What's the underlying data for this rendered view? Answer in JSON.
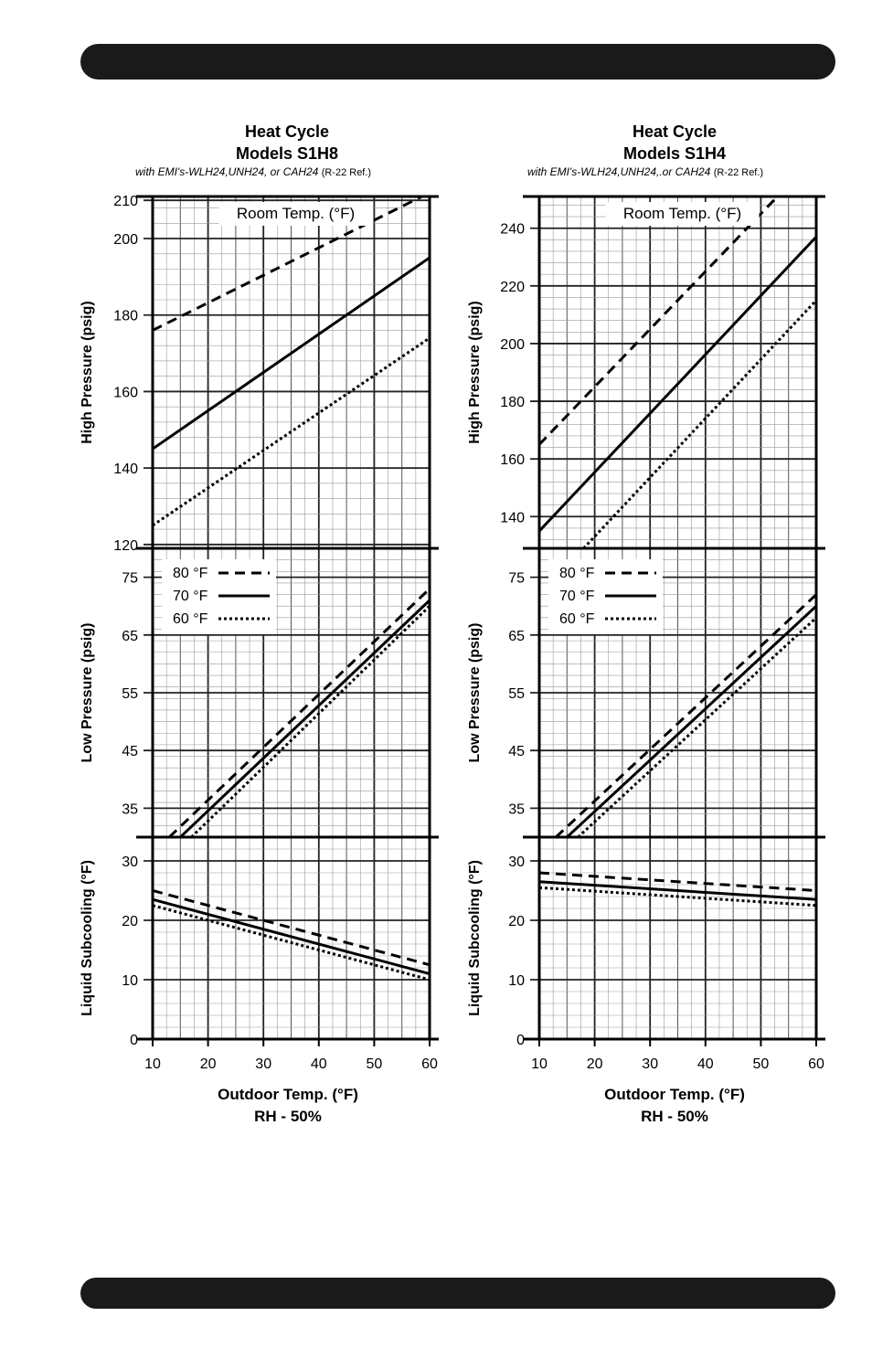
{
  "chart_data": [
    {
      "type": "line",
      "title": "Heat Cycle",
      "subtitle": "Models S1H8",
      "note": "with EMI's-WLH24,UNH24, or CAH24",
      "ref": "(R-22 Ref.)",
      "xlabel": "Outdoor Temp. (°F)",
      "xlabel2": "RH - 50%",
      "x_ticks": [
        10,
        20,
        30,
        40,
        50,
        60
      ],
      "xlim": [
        10,
        60
      ],
      "grid": true,
      "legend_title": "Room Temp. (°F)",
      "legend": [
        "80 °F",
        "70 °F",
        "60 °F"
      ],
      "panels": [
        {
          "ylabel": "High Pressure (psig)",
          "ylim": [
            119,
            211
          ],
          "y_ticks": [
            120,
            140,
            160,
            180,
            200,
            210
          ],
          "series": [
            {
              "name": "80 °F",
              "style": "dashed",
              "points": [
                [
                  10,
                  176
                ],
                [
                  60,
                  212
                ]
              ]
            },
            {
              "name": "70 °F",
              "style": "solid",
              "points": [
                [
                  10,
                  145
                ],
                [
                  60,
                  195
                ]
              ]
            },
            {
              "name": "60 °F",
              "style": "dotted",
              "points": [
                [
                  10,
                  125
                ],
                [
                  60,
                  174
                ]
              ]
            }
          ]
        },
        {
          "ylabel": "Low Pressure (psig)",
          "ylim": [
            30,
            80
          ],
          "y_ticks": [
            35,
            45,
            55,
            65,
            75
          ],
          "series": [
            {
              "name": "80 °F",
              "style": "dashed",
              "points": [
                [
                  13,
                  30
                ],
                [
                  60,
                  73
                ]
              ]
            },
            {
              "name": "70 °F",
              "style": "solid",
              "points": [
                [
                  15,
                  30
                ],
                [
                  60,
                  71
                ]
              ]
            },
            {
              "name": "60 °F",
              "style": "dotted",
              "points": [
                [
                  17,
                  30
                ],
                [
                  60,
                  70
                ]
              ]
            }
          ]
        },
        {
          "ylabel": "Liquid Subcooling (°F)",
          "ylim": [
            0,
            34
          ],
          "y_ticks": [
            0,
            10,
            20,
            30
          ],
          "series": [
            {
              "name": "80 °F",
              "style": "dashed",
              "points": [
                [
                  10,
                  25
                ],
                [
                  60,
                  12.5
                ]
              ]
            },
            {
              "name": "70 °F",
              "style": "solid",
              "points": [
                [
                  10,
                  23.5
                ],
                [
                  60,
                  11
                ]
              ]
            },
            {
              "name": "60 °F",
              "style": "dotted",
              "points": [
                [
                  10,
                  22.5
                ],
                [
                  60,
                  10
                ]
              ]
            }
          ]
        }
      ]
    },
    {
      "type": "line",
      "title": "Heat Cycle",
      "subtitle": "Models S1H4",
      "note": "with EMI's-WLH24,UNH24,.or CAH24",
      "ref": "(R-22 Ref.)",
      "xlabel": "Outdoor Temp. (°F)",
      "xlabel2": "RH - 50%",
      "x_ticks": [
        10,
        20,
        30,
        40,
        50,
        60
      ],
      "xlim": [
        10,
        60
      ],
      "grid": true,
      "legend_title": "Room Temp. (°F)",
      "legend": [
        "80 °F",
        "70 °F",
        "60 °F"
      ],
      "panels": [
        {
          "ylabel": "High Pressure (psig)",
          "ylim": [
            129,
            251
          ],
          "y_ticks": [
            140,
            160,
            180,
            200,
            220,
            240
          ],
          "series": [
            {
              "name": "80 °F",
              "style": "dashed",
              "points": [
                [
                  10,
                  165
                ],
                [
                  53,
                  251
                ]
              ]
            },
            {
              "name": "70 °F",
              "style": "solid",
              "points": [
                [
                  10,
                  135
                ],
                [
                  60,
                  237
                ]
              ]
            },
            {
              "name": "60 °F",
              "style": "dotted",
              "points": [
                [
                  18,
                  129
                ],
                [
                  60,
                  215
                ]
              ]
            }
          ]
        },
        {
          "ylabel": "Low Pressure (psig)",
          "ylim": [
            30,
            80
          ],
          "y_ticks": [
            35,
            45,
            55,
            65,
            75
          ],
          "series": [
            {
              "name": "80 °F",
              "style": "dashed",
              "points": [
                [
                  13,
                  30
                ],
                [
                  60,
                  72
                ]
              ]
            },
            {
              "name": "70 °F",
              "style": "solid",
              "points": [
                [
                  15,
                  30
                ],
                [
                  60,
                  70
                ]
              ]
            },
            {
              "name": "60 °F",
              "style": "dotted",
              "points": [
                [
                  17,
                  30
                ],
                [
                  60,
                  68
                ]
              ]
            }
          ]
        },
        {
          "ylabel": "Liquid Subcooling (°F)",
          "ylim": [
            0,
            34
          ],
          "y_ticks": [
            0,
            10,
            20,
            30
          ],
          "series": [
            {
              "name": "80 °F",
              "style": "dashed",
              "points": [
                [
                  10,
                  28
                ],
                [
                  60,
                  25
                ]
              ]
            },
            {
              "name": "70 °F",
              "style": "solid",
              "points": [
                [
                  10,
                  26.5
                ],
                [
                  60,
                  23.5
                ]
              ]
            },
            {
              "name": "60 °F",
              "style": "dotted",
              "points": [
                [
                  10,
                  25.5
                ],
                [
                  60,
                  22.5
                ]
              ]
            }
          ]
        }
      ]
    }
  ]
}
